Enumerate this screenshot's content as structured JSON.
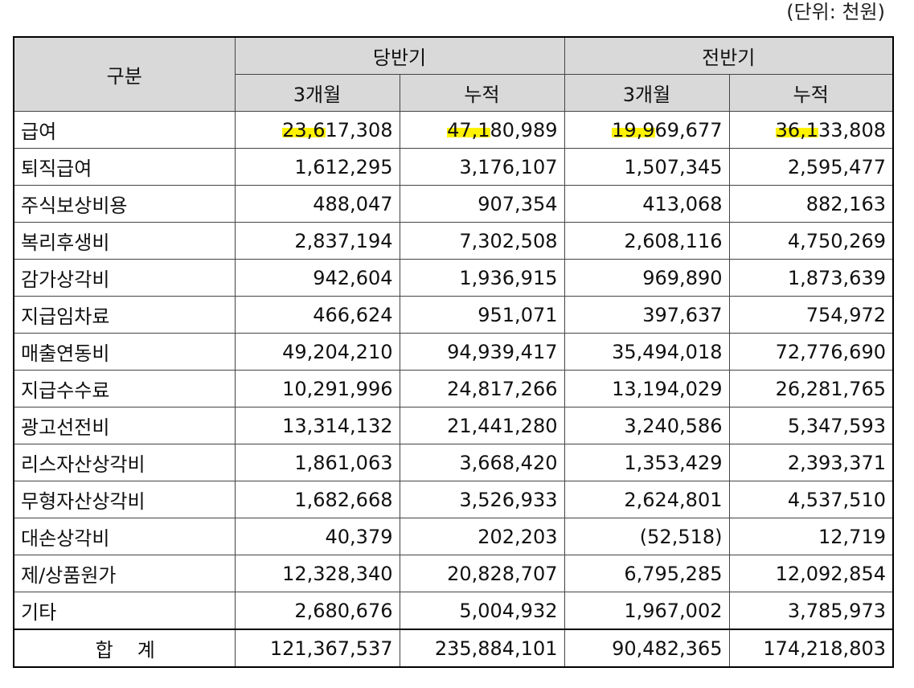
{
  "unit_note": "(단위: 천원)",
  "header": {
    "category": "구분",
    "current_period": "당반기",
    "prior_period": "전반기",
    "three_months": "3개월",
    "cumulative": "누적"
  },
  "rows": [
    {
      "label": "급여",
      "values": [
        "23,617,308",
        "47,180,989",
        "19,969,677",
        "36,133,808"
      ],
      "highlight": [
        [
          "23,6",
          "17,308"
        ],
        [
          "47,1",
          "80,989"
        ],
        [
          "19,9",
          "69,677"
        ],
        [
          "36,1",
          "33,808"
        ]
      ]
    },
    {
      "label": "퇴직급여",
      "values": [
        "1,612,295",
        "3,176,107",
        "1,507,345",
        "2,595,477"
      ]
    },
    {
      "label": "주식보상비용",
      "values": [
        "488,047",
        "907,354",
        "413,068",
        "882,163"
      ]
    },
    {
      "label": "복리후생비",
      "values": [
        "2,837,194",
        "7,302,508",
        "2,608,116",
        "4,750,269"
      ]
    },
    {
      "label": "감가상각비",
      "values": [
        "942,604",
        "1,936,915",
        "969,890",
        "1,873,639"
      ]
    },
    {
      "label": "지급임차료",
      "values": [
        "466,624",
        "951,071",
        "397,637",
        "754,972"
      ]
    },
    {
      "label": "매출연동비",
      "values": [
        "49,204,210",
        "94,939,417",
        "35,494,018",
        "72,776,690"
      ]
    },
    {
      "label": "지급수수료",
      "values": [
        "10,291,996",
        "24,817,266",
        "13,194,029",
        "26,281,765"
      ]
    },
    {
      "label": "광고선전비",
      "values": [
        "13,314,132",
        "21,441,280",
        "3,240,586",
        "5,347,593"
      ]
    },
    {
      "label": "리스자산상각비",
      "values": [
        "1,861,063",
        "3,668,420",
        "1,353,429",
        "2,393,371"
      ]
    },
    {
      "label": "무형자산상각비",
      "values": [
        "1,682,668",
        "3,526,933",
        "2,624,801",
        "4,537,510"
      ]
    },
    {
      "label": "대손상각비",
      "values": [
        "40,379",
        "202,203",
        "(52,518)",
        "12,719"
      ]
    },
    {
      "label": "제/상품원가",
      "values": [
        "12,328,340",
        "20,828,707",
        "6,795,285",
        "12,092,854"
      ]
    },
    {
      "label": "기타",
      "values": [
        "2,680,676",
        "5,004,932",
        "1,967,002",
        "3,785,973"
      ]
    }
  ],
  "total": {
    "label": "합계",
    "values": [
      "121,367,537",
      "235,884,101",
      "90,482,365",
      "174,218,803"
    ]
  },
  "colors": {
    "header_bg": "#d9d9d9",
    "highlight": "#fff200"
  }
}
